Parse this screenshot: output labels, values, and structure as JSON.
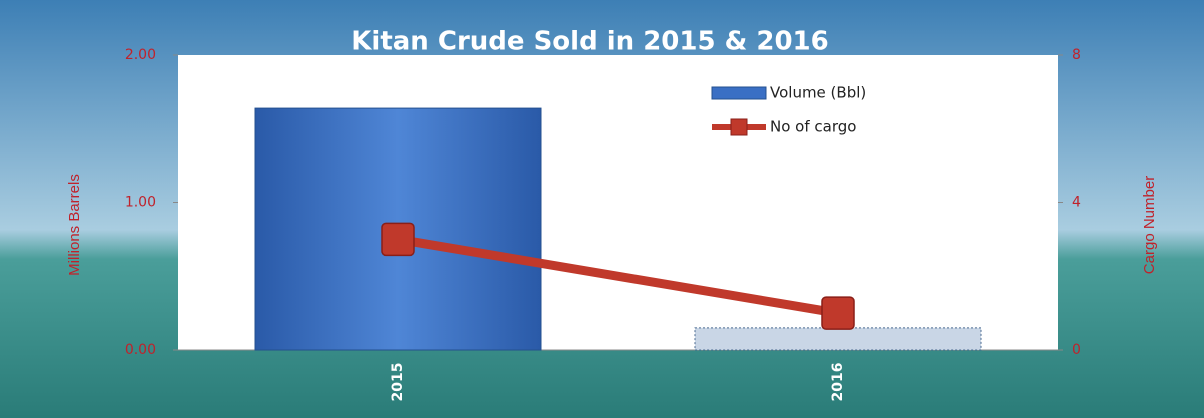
{
  "chart_data": {
    "type": "bar-line",
    "title": "Kitan Crude Sold  in 2015 & 2016",
    "categories": [
      "2015",
      "2016"
    ],
    "ylabel": "Millions  Barrels",
    "y2label": "Cargo Number",
    "ylim": [
      0,
      2
    ],
    "yticks": [
      {
        "value": 0,
        "label": "0.00"
      },
      {
        "value": 1,
        "label": "1.00"
      },
      {
        "value": 2,
        "label": "2.00"
      }
    ],
    "y2lim": [
      0,
      8
    ],
    "y2ticks": [
      0,
      4,
      8
    ],
    "series": [
      {
        "name": "Volume (Bbl)",
        "type": "bar",
        "color": "#3a6fc4",
        "point_colors": [
          "#3a6fc4",
          "#c9d6e6"
        ],
        "values": [
          1.64,
          0.15
        ]
      },
      {
        "name": "No of cargo",
        "type": "line",
        "axis": "y2",
        "color": "#c0392b",
        "values": [
          3,
          1
        ]
      }
    ],
    "legend": "top-right"
  }
}
